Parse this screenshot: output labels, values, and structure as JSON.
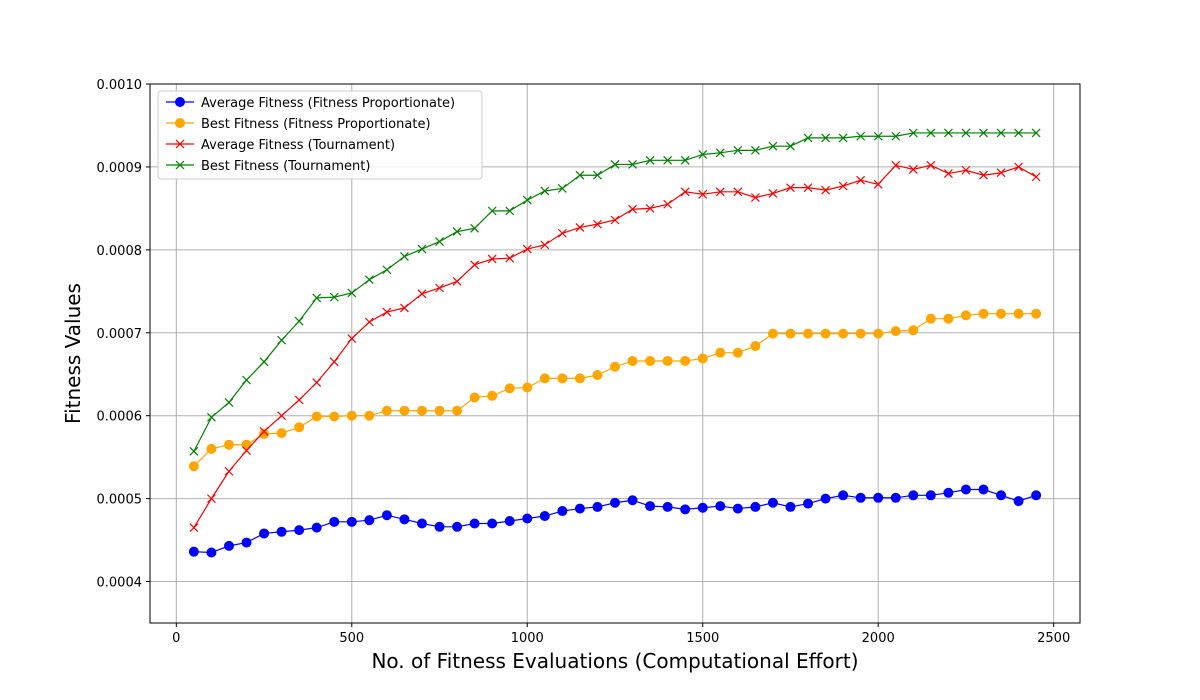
{
  "chart_data": {
    "type": "line",
    "title": "",
    "xlabel": "No. of Fitness Evaluations (Computational Effort)",
    "ylabel": "Fitness Values",
    "xlim": [
      -75,
      2575
    ],
    "ylim": [
      0.00035,
      0.001
    ],
    "x_ticks": [
      0,
      500,
      1000,
      1500,
      2000,
      2500
    ],
    "x_tick_labels": [
      "0",
      "500",
      "1000",
      "1500",
      "2000",
      "2500"
    ],
    "y_ticks": [
      0.0004,
      0.0005,
      0.0006,
      0.0007,
      0.0008,
      0.0009,
      0.001
    ],
    "y_tick_labels": [
      "0.0004",
      "0.0005",
      "0.0006",
      "0.0007",
      "0.0008",
      "0.0009",
      "0.0010"
    ],
    "grid": true,
    "legend_position": "top-left",
    "x": [
      50,
      100,
      150,
      200,
      250,
      300,
      350,
      400,
      450,
      500,
      550,
      600,
      650,
      700,
      750,
      800,
      850,
      900,
      950,
      1000,
      1050,
      1100,
      1150,
      1200,
      1250,
      1300,
      1350,
      1400,
      1450,
      1500,
      1550,
      1600,
      1650,
      1700,
      1750,
      1800,
      1850,
      1900,
      1950,
      2000,
      2050,
      2100,
      2150,
      2200,
      2250,
      2300,
      2350,
      2400,
      2450
    ],
    "series": [
      {
        "name": "Average Fitness (Fitness Proportionate)",
        "color": "#0000ff",
        "marker": "circle",
        "values": [
          0.000436,
          0.000435,
          0.000443,
          0.000447,
          0.000458,
          0.00046,
          0.000462,
          0.000465,
          0.000472,
          0.000472,
          0.000474,
          0.00048,
          0.000475,
          0.00047,
          0.000466,
          0.000466,
          0.00047,
          0.00047,
          0.000473,
          0.000476,
          0.000479,
          0.000485,
          0.000488,
          0.00049,
          0.000495,
          0.000498,
          0.000491,
          0.00049,
          0.000487,
          0.000489,
          0.000491,
          0.000488,
          0.00049,
          0.000495,
          0.00049,
          0.000494,
          0.0005,
          0.000504,
          0.000501,
          0.000501,
          0.000501,
          0.000504,
          0.000504,
          0.000507,
          0.000511,
          0.000511,
          0.000504,
          0.000497,
          0.000504
        ]
      },
      {
        "name": "Best Fitness (Fitness Proportionate)",
        "color": "#ffa500",
        "marker": "circle",
        "values": [
          0.000539,
          0.00056,
          0.000565,
          0.000565,
          0.000578,
          0.000579,
          0.000586,
          0.000599,
          0.000599,
          0.0006,
          0.0006,
          0.000606,
          0.000606,
          0.000606,
          0.000606,
          0.000606,
          0.000622,
          0.000624,
          0.000633,
          0.000634,
          0.000645,
          0.000645,
          0.000645,
          0.000649,
          0.000659,
          0.000666,
          0.000666,
          0.000666,
          0.000666,
          0.000669,
          0.000676,
          0.000676,
          0.000684,
          0.000699,
          0.000699,
          0.000699,
          0.000699,
          0.000699,
          0.000699,
          0.000699,
          0.000702,
          0.000703,
          0.000717,
          0.000717,
          0.000721,
          0.000723,
          0.000723,
          0.000723,
          0.000723
        ]
      },
      {
        "name": "Average Fitness (Tournament)",
        "color": "#ff0000",
        "marker": "x",
        "values": [
          0.000465,
          0.0005,
          0.000533,
          0.000558,
          0.000581,
          0.0006,
          0.000619,
          0.00064,
          0.000665,
          0.000693,
          0.000713,
          0.000725,
          0.00073,
          0.000747,
          0.000754,
          0.000762,
          0.000782,
          0.000789,
          0.00079,
          0.000801,
          0.000806,
          0.00082,
          0.000827,
          0.000831,
          0.000836,
          0.000849,
          0.00085,
          0.000855,
          0.00087,
          0.000867,
          0.00087,
          0.00087,
          0.000863,
          0.000868,
          0.000875,
          0.000875,
          0.000872,
          0.000877,
          0.000884,
          0.000879,
          0.000902,
          0.000897,
          0.000902,
          0.000892,
          0.000896,
          0.00089,
          0.000893,
          0.0009,
          0.000888
        ]
      },
      {
        "name": "Best Fitness (Tournament)",
        "color": "#008000",
        "marker": "x",
        "values": [
          0.000557,
          0.000598,
          0.000616,
          0.000643,
          0.000665,
          0.000691,
          0.000714,
          0.000742,
          0.000743,
          0.000748,
          0.000764,
          0.000776,
          0.000792,
          0.000801,
          0.00081,
          0.000822,
          0.000826,
          0.000847,
          0.000847,
          0.00086,
          0.000871,
          0.000874,
          0.00089,
          0.00089,
          0.000903,
          0.000903,
          0.000908,
          0.000908,
          0.000908,
          0.000915,
          0.000917,
          0.00092,
          0.00092,
          0.000925,
          0.000925,
          0.000935,
          0.000935,
          0.000935,
          0.000937,
          0.000937,
          0.000937,
          0.000941,
          0.000941,
          0.000941,
          0.000941,
          0.000941,
          0.000941,
          0.000941,
          0.000941
        ]
      }
    ]
  }
}
